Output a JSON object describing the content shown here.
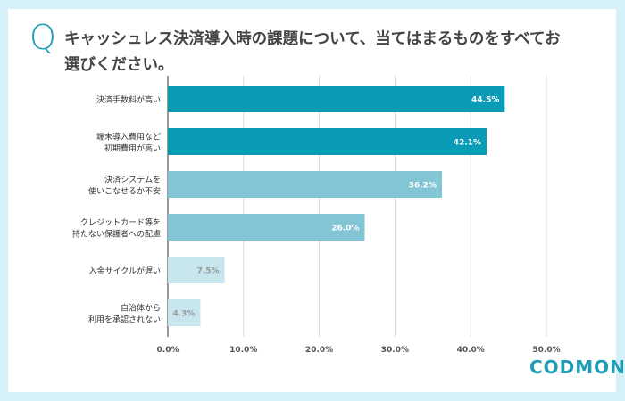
{
  "question_mark": "Q",
  "title": "キャッシュレス決済導入時の課題について、当てはまるものをすべてお選びください。",
  "logo": "CODMON",
  "chart_data": {
    "type": "bar",
    "orientation": "horizontal",
    "categories": [
      [
        "決済手数料が高い"
      ],
      [
        "端末導入費用など",
        "初期費用が高い"
      ],
      [
        "決済システムを",
        "使いこなせるか不安"
      ],
      [
        "クレジットカード等を",
        "持たない保護者への配慮"
      ],
      [
        "入金サイクルが遅い"
      ],
      [
        "自治体から",
        "利用を承認されない"
      ]
    ],
    "values": [
      44.5,
      42.1,
      36.2,
      26.0,
      7.5,
      4.3
    ],
    "data_labels": [
      "44.5%",
      "42.1%",
      "36.2%",
      "26.0%",
      "7.5%",
      "4.3%"
    ],
    "xlim": [
      0,
      50
    ],
    "ticks": [
      "0.0%",
      "10.0%",
      "20.0%",
      "30.0%",
      "40.0%",
      "50.0%"
    ],
    "grid": true,
    "colors": [
      "#0a9bb6",
      "#0a9bb6",
      "#82c5d5",
      "#82c5d5",
      "#c8e6ee",
      "#c8e6ee"
    ],
    "label_colors": [
      "#ffffff",
      "#ffffff",
      "#ffffff",
      "#ffffff",
      "#999999",
      "#999999"
    ]
  }
}
